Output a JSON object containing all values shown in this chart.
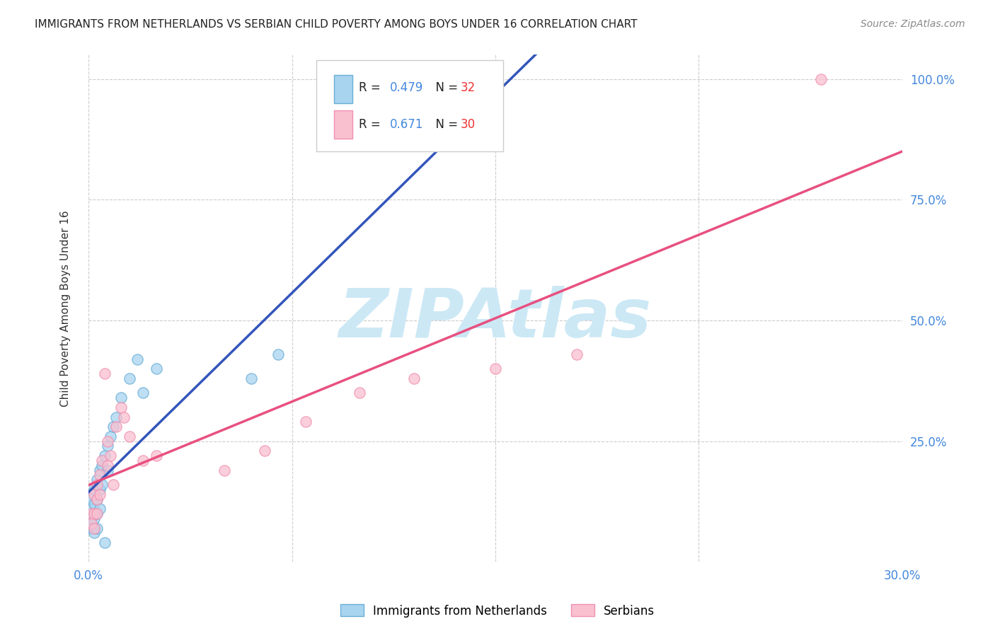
{
  "title": "IMMIGRANTS FROM NETHERLANDS VS SERBIAN CHILD POVERTY AMONG BOYS UNDER 16 CORRELATION CHART",
  "source": "Source: ZipAtlas.com",
  "ylabel": "Child Poverty Among Boys Under 16",
  "R1": 0.479,
  "N1": 32,
  "R2": 0.671,
  "N2": 30,
  "blue_fill": "#a8d4f0",
  "blue_edge": "#6aaed6",
  "pink_fill": "#f9c0d0",
  "pink_edge": "#f090b0",
  "blue_line_color": "#3355bb",
  "pink_line_color": "#e85080",
  "watermark": "ZIPAtlas",
  "watermark_color": "#cce8f5",
  "background_color": "#ffffff",
  "legend1_label": "Immigrants from Netherlands",
  "legend2_label": "Serbians",
  "blue_dots": [
    [
      0.001,
      0.13
    ],
    [
      0.001,
      0.11
    ],
    [
      0.001,
      0.09
    ],
    [
      0.001,
      0.07
    ],
    [
      0.002,
      0.15
    ],
    [
      0.002,
      0.12
    ],
    [
      0.002,
      0.09
    ],
    [
      0.002,
      0.07
    ],
    [
      0.002,
      0.06
    ],
    [
      0.003,
      0.17
    ],
    [
      0.003,
      0.13
    ],
    [
      0.003,
      0.1
    ],
    [
      0.003,
      0.07
    ],
    [
      0.004,
      0.19
    ],
    [
      0.004,
      0.15
    ],
    [
      0.004,
      0.11
    ],
    [
      0.005,
      0.2
    ],
    [
      0.005,
      0.16
    ],
    [
      0.006,
      0.22
    ],
    [
      0.006,
      0.04
    ],
    [
      0.007,
      0.24
    ],
    [
      0.007,
      0.19
    ],
    [
      0.008,
      0.26
    ],
    [
      0.009,
      0.28
    ],
    [
      0.01,
      0.3
    ],
    [
      0.012,
      0.34
    ],
    [
      0.015,
      0.38
    ],
    [
      0.018,
      0.42
    ],
    [
      0.02,
      0.35
    ],
    [
      0.025,
      0.4
    ],
    [
      0.06,
      0.38
    ],
    [
      0.07,
      0.43
    ]
  ],
  "pink_dots": [
    [
      0.001,
      0.1
    ],
    [
      0.001,
      0.08
    ],
    [
      0.002,
      0.14
    ],
    [
      0.002,
      0.1
    ],
    [
      0.002,
      0.07
    ],
    [
      0.003,
      0.16
    ],
    [
      0.003,
      0.13
    ],
    [
      0.003,
      0.1
    ],
    [
      0.004,
      0.18
    ],
    [
      0.004,
      0.14
    ],
    [
      0.005,
      0.21
    ],
    [
      0.006,
      0.39
    ],
    [
      0.007,
      0.25
    ],
    [
      0.007,
      0.2
    ],
    [
      0.008,
      0.22
    ],
    [
      0.009,
      0.16
    ],
    [
      0.01,
      0.28
    ],
    [
      0.012,
      0.32
    ],
    [
      0.013,
      0.3
    ],
    [
      0.015,
      0.26
    ],
    [
      0.02,
      0.21
    ],
    [
      0.025,
      0.22
    ],
    [
      0.05,
      0.19
    ],
    [
      0.065,
      0.23
    ],
    [
      0.08,
      0.29
    ],
    [
      0.1,
      0.35
    ],
    [
      0.12,
      0.38
    ],
    [
      0.15,
      0.4
    ],
    [
      0.18,
      0.43
    ],
    [
      0.27,
      1.0
    ]
  ],
  "xlim": [
    0.0,
    0.3
  ],
  "ylim": [
    0.0,
    1.05
  ]
}
